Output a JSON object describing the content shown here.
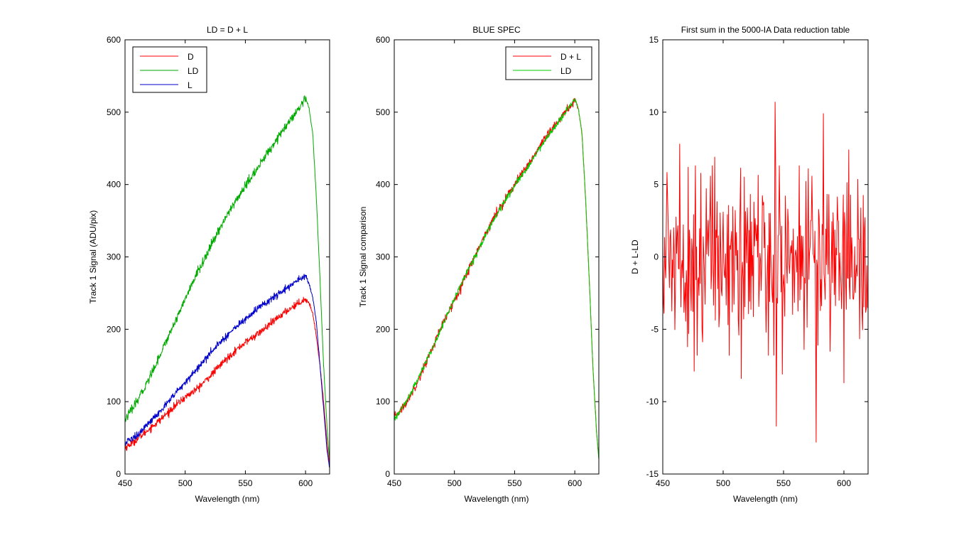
{
  "chart_data": [
    {
      "type": "line",
      "title": "LD = D + L",
      "xlabel": "Wavelength (nm)",
      "ylabel": "Track 1 Signal (ADU/pix)",
      "xlim": [
        450,
        620
      ],
      "ylim": [
        0,
        600
      ],
      "xticks": [
        450,
        500,
        550,
        600
      ],
      "yticks": [
        0,
        100,
        200,
        300,
        400,
        500,
        600
      ],
      "grid": false,
      "legend_location": "top-left",
      "series": [
        {
          "name": "D",
          "color": "#ff0000",
          "noise": 2.5,
          "anchors": [
            [
              450,
              36
            ],
            [
              460,
              48
            ],
            [
              470,
              62
            ],
            [
              480,
              76
            ],
            [
              490,
              92
            ],
            [
              500,
              106
            ],
            [
              510,
              118
            ],
            [
              520,
              134
            ],
            [
              530,
              152
            ],
            [
              540,
              168
            ],
            [
              550,
              182
            ],
            [
              560,
              193
            ],
            [
              570,
              206
            ],
            [
              580,
              220
            ],
            [
              590,
              232
            ],
            [
              600,
              242
            ],
            [
              603,
              236
            ],
            [
              606,
              222
            ],
            [
              609,
              190
            ],
            [
              612,
              150
            ],
            [
              615,
              100
            ],
            [
              618,
              40
            ],
            [
              620,
              12
            ]
          ]
        },
        {
          "name": "LD",
          "color": "#00aa00",
          "noise": 3,
          "anchors": [
            [
              450,
              75
            ],
            [
              460,
              100
            ],
            [
              470,
              132
            ],
            [
              480,
              168
            ],
            [
              490,
              205
            ],
            [
              500,
              242
            ],
            [
              510,
              278
            ],
            [
              520,
              310
            ],
            [
              530,
              344
            ],
            [
              540,
              372
            ],
            [
              550,
              398
            ],
            [
              560,
              422
            ],
            [
              570,
              448
            ],
            [
              580,
              472
            ],
            [
              590,
              494
            ],
            [
              600,
              518
            ],
            [
              603,
              505
            ],
            [
              606,
              470
            ],
            [
              609,
              380
            ],
            [
              612,
              270
            ],
            [
              615,
              150
            ],
            [
              618,
              60
            ],
            [
              620,
              20
            ]
          ]
        },
        {
          "name": "L",
          "color": "#0000cc",
          "noise": 2.5,
          "anchors": [
            [
              450,
              42
            ],
            [
              460,
              54
            ],
            [
              470,
              70
            ],
            [
              480,
              88
            ],
            [
              490,
              108
            ],
            [
              500,
              126
            ],
            [
              510,
              146
            ],
            [
              520,
              166
            ],
            [
              530,
              184
            ],
            [
              540,
              200
            ],
            [
              550,
              214
            ],
            [
              560,
              228
            ],
            [
              570,
              240
            ],
            [
              580,
              252
            ],
            [
              590,
              264
            ],
            [
              600,
              274
            ],
            [
              603,
              262
            ],
            [
              606,
              244
            ],
            [
              609,
              210
            ],
            [
              612,
              150
            ],
            [
              615,
              90
            ],
            [
              618,
              30
            ],
            [
              620,
              8
            ]
          ]
        }
      ]
    },
    {
      "type": "line",
      "title": "BLUE SPEC",
      "xlabel": "Wavelength (nm)",
      "ylabel": "Track 1 Signal comparison",
      "xlim": [
        450,
        620
      ],
      "ylim": [
        0,
        600
      ],
      "xticks": [
        450,
        500,
        550,
        600
      ],
      "yticks": [
        0,
        100,
        200,
        300,
        400,
        500,
        600
      ],
      "grid": false,
      "legend_location": "top-right",
      "series": [
        {
          "name": "D + L",
          "color": "#ff0000",
          "noise": 3,
          "anchors": [
            [
              450,
              78
            ],
            [
              460,
              98
            ],
            [
              470,
              130
            ],
            [
              480,
              168
            ],
            [
              490,
              206
            ],
            [
              500,
              240
            ],
            [
              510,
              276
            ],
            [
              520,
              312
            ],
            [
              530,
              346
            ],
            [
              540,
              374
            ],
            [
              550,
              400
            ],
            [
              560,
              424
            ],
            [
              570,
              450
            ],
            [
              580,
              474
            ],
            [
              590,
              496
            ],
            [
              600,
              516
            ],
            [
              603,
              505
            ],
            [
              606,
              470
            ],
            [
              609,
              380
            ],
            [
              612,
              270
            ],
            [
              615,
              150
            ],
            [
              618,
              60
            ],
            [
              620,
              20
            ]
          ]
        },
        {
          "name": "LD",
          "color": "#00cc00",
          "noise": 2,
          "anchors": [
            [
              450,
              75
            ],
            [
              460,
              100
            ],
            [
              470,
              132
            ],
            [
              480,
              168
            ],
            [
              490,
              205
            ],
            [
              500,
              242
            ],
            [
              510,
              278
            ],
            [
              520,
              310
            ],
            [
              530,
              344
            ],
            [
              540,
              372
            ],
            [
              550,
              398
            ],
            [
              560,
              422
            ],
            [
              570,
              448
            ],
            [
              580,
              472
            ],
            [
              590,
              494
            ],
            [
              600,
              518
            ],
            [
              603,
              505
            ],
            [
              606,
              470
            ],
            [
              609,
              380
            ],
            [
              612,
              270
            ],
            [
              615,
              150
            ],
            [
              618,
              60
            ],
            [
              620,
              20
            ]
          ]
        }
      ]
    },
    {
      "type": "line",
      "title": "First sum in the 5000-IA Data reduction table",
      "xlabel": "Wavelength (nm)",
      "ylabel": "D + L-LD",
      "xlim": [
        450,
        620
      ],
      "ylim": [
        -15,
        15
      ],
      "xticks": [
        450,
        500,
        550,
        600
      ],
      "yticks": [
        -15,
        -10,
        -5,
        0,
        5,
        10,
        15
      ],
      "grid": false,
      "legend_location": "none",
      "series": [
        {
          "name": "D + L-LD",
          "color": "#ff0000",
          "noise_std": 3,
          "spikes": [
            [
              464,
              7.8
            ],
            [
              471,
              6.2
            ],
            [
              476,
              -7.9
            ],
            [
              493,
              6.9
            ],
            [
              515,
              -8.4
            ],
            [
              543,
              10.7
            ],
            [
              544,
              -11.7
            ],
            [
              549,
              -8.1
            ],
            [
              577,
              -12.8
            ],
            [
              583,
              9.9
            ],
            [
              600,
              -8.7
            ],
            [
              604,
              7.4
            ]
          ]
        }
      ]
    }
  ]
}
